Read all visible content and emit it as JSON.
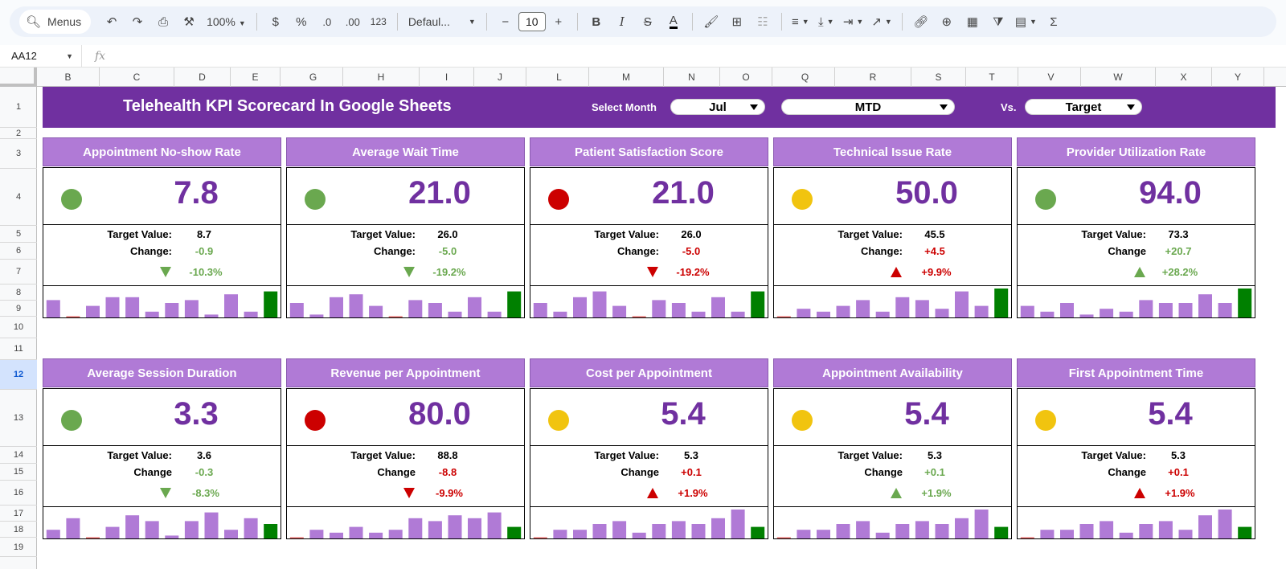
{
  "toolbar": {
    "menus_label": "Menus",
    "zoom": "100%",
    "currency": "$",
    "percent": "%",
    "dec_decrease": ".0",
    "dec_increase": ".00",
    "number_format": "123",
    "font_family": "Defaul...",
    "font_size": "10",
    "minus": "−",
    "plus": "+",
    "bold": "B",
    "italic": "I",
    "strike": "S",
    "text_color": "A",
    "sum": "Σ"
  },
  "formula_bar": {
    "cell_ref": "AA12",
    "fx": "fx",
    "formula": ""
  },
  "columns": [
    "B",
    "C",
    "D",
    "E",
    "G",
    "H",
    "I",
    "J",
    "L",
    "M",
    "N",
    "O",
    "Q",
    "R",
    "S",
    "T",
    "V",
    "W",
    "X",
    "Y"
  ],
  "rows": [
    "1",
    "2",
    "3",
    "4",
    "5",
    "6",
    "7",
    "8",
    "9",
    "10",
    "11",
    "12",
    "13",
    "14",
    "15",
    "16",
    "17",
    "18",
    "19"
  ],
  "active_row": "12",
  "header": {
    "title": "Telehealth KPI Scorecard In Google Sheets",
    "select_month_label": "Select Month",
    "month": "Jul",
    "period": "MTD",
    "vs_label": "Vs.",
    "compare": "Target"
  },
  "colors": {
    "purple": "#7030a0",
    "light_purple": "#b07ad6",
    "green": "#6aa84f",
    "red": "#cc0000",
    "yellow": "#f1c40f",
    "bar": "#b07ad6",
    "bar_current": "#008000",
    "bar_low": "#e06666"
  },
  "labels": {
    "target": "Target Value:",
    "change": "Change:",
    "change_alt": "Change"
  },
  "cards": [
    {
      "title": "Appointment No-show Rate",
      "status": "green",
      "value": "7.8",
      "target": "8.7",
      "change": "-0.9",
      "pct": "-10.3%",
      "direction": "down",
      "good": true,
      "change_label": "Change:",
      "bars": [
        6,
        0,
        4,
        7,
        7,
        2,
        5,
        6,
        1,
        8,
        2,
        9
      ]
    },
    {
      "title": "Average Wait Time",
      "status": "green",
      "value": "21.0",
      "target": "26.0",
      "change": "-5.0",
      "pct": "-19.2%",
      "direction": "down",
      "good": true,
      "change_label": "Change:",
      "bars": [
        5,
        1,
        7,
        8,
        4,
        0,
        6,
        5,
        2,
        7,
        2,
        9
      ]
    },
    {
      "title": "Patient Satisfaction Score",
      "status": "red",
      "value": "21.0",
      "target": "26.0",
      "change": "-5.0",
      "pct": "-19.2%",
      "direction": "down",
      "good": false,
      "change_label": "Change:",
      "bars": [
        5,
        2,
        7,
        9,
        4,
        0,
        6,
        5,
        2,
        7,
        2,
        9
      ]
    },
    {
      "title": "Technical Issue Rate",
      "status": "yellow",
      "value": "50.0",
      "target": "45.5",
      "change": "+4.5",
      "pct": "+9.9%",
      "direction": "up",
      "good": false,
      "change_label": "Change:",
      "bars": [
        0,
        3,
        2,
        4,
        6,
        2,
        7,
        6,
        3,
        9,
        4,
        10
      ]
    },
    {
      "title": "Provider Utilization Rate",
      "status": "green",
      "value": "94.0",
      "target": "73.3",
      "change": "+20.7",
      "pct": "+28.2%",
      "direction": "up",
      "good": true,
      "change_label": "Change",
      "bars": [
        4,
        2,
        5,
        1,
        3,
        2,
        6,
        5,
        5,
        8,
        5,
        10
      ]
    },
    {
      "title": "Average Session Duration",
      "status": "green",
      "value": "3.3",
      "target": "3.6",
      "change": "-0.3",
      "pct": "-8.3%",
      "direction": "down",
      "good": true,
      "change_label": "Change",
      "bars": [
        3,
        7,
        0,
        4,
        8,
        6,
        1,
        6,
        9,
        3,
        7,
        5
      ]
    },
    {
      "title": "Revenue per Appointment",
      "status": "red",
      "value": "80.0",
      "target": "88.8",
      "change": "-8.8",
      "pct": "-9.9%",
      "direction": "down",
      "good": false,
      "change_label": "Change",
      "bars": [
        0,
        3,
        2,
        4,
        2,
        3,
        7,
        6,
        8,
        7,
        9,
        4
      ]
    },
    {
      "title": "Cost per Appointment",
      "status": "yellow",
      "value": "5.4",
      "target": "5.3",
      "change": "+0.1",
      "pct": "+1.9%",
      "direction": "up",
      "good": false,
      "change_label": "Change",
      "bars": [
        0,
        3,
        3,
        5,
        6,
        2,
        5,
        6,
        5,
        7,
        10,
        4
      ]
    },
    {
      "title": "Appointment Availability",
      "status": "yellow",
      "value": "5.4",
      "target": "5.3",
      "change": "+0.1",
      "pct": "+1.9%",
      "direction": "up",
      "good": true,
      "change_label": "Change",
      "bars": [
        0,
        3,
        3,
        5,
        6,
        2,
        5,
        6,
        5,
        7,
        10,
        4
      ]
    },
    {
      "title": "First Appointment Time",
      "status": "yellow",
      "value": "5.4",
      "target": "5.3",
      "change": "+0.1",
      "pct": "+1.9%",
      "direction": "up",
      "good": false,
      "change_label": "Change",
      "bars": [
        0,
        3,
        3,
        5,
        6,
        2,
        5,
        6,
        3,
        8,
        10,
        4
      ]
    }
  ]
}
